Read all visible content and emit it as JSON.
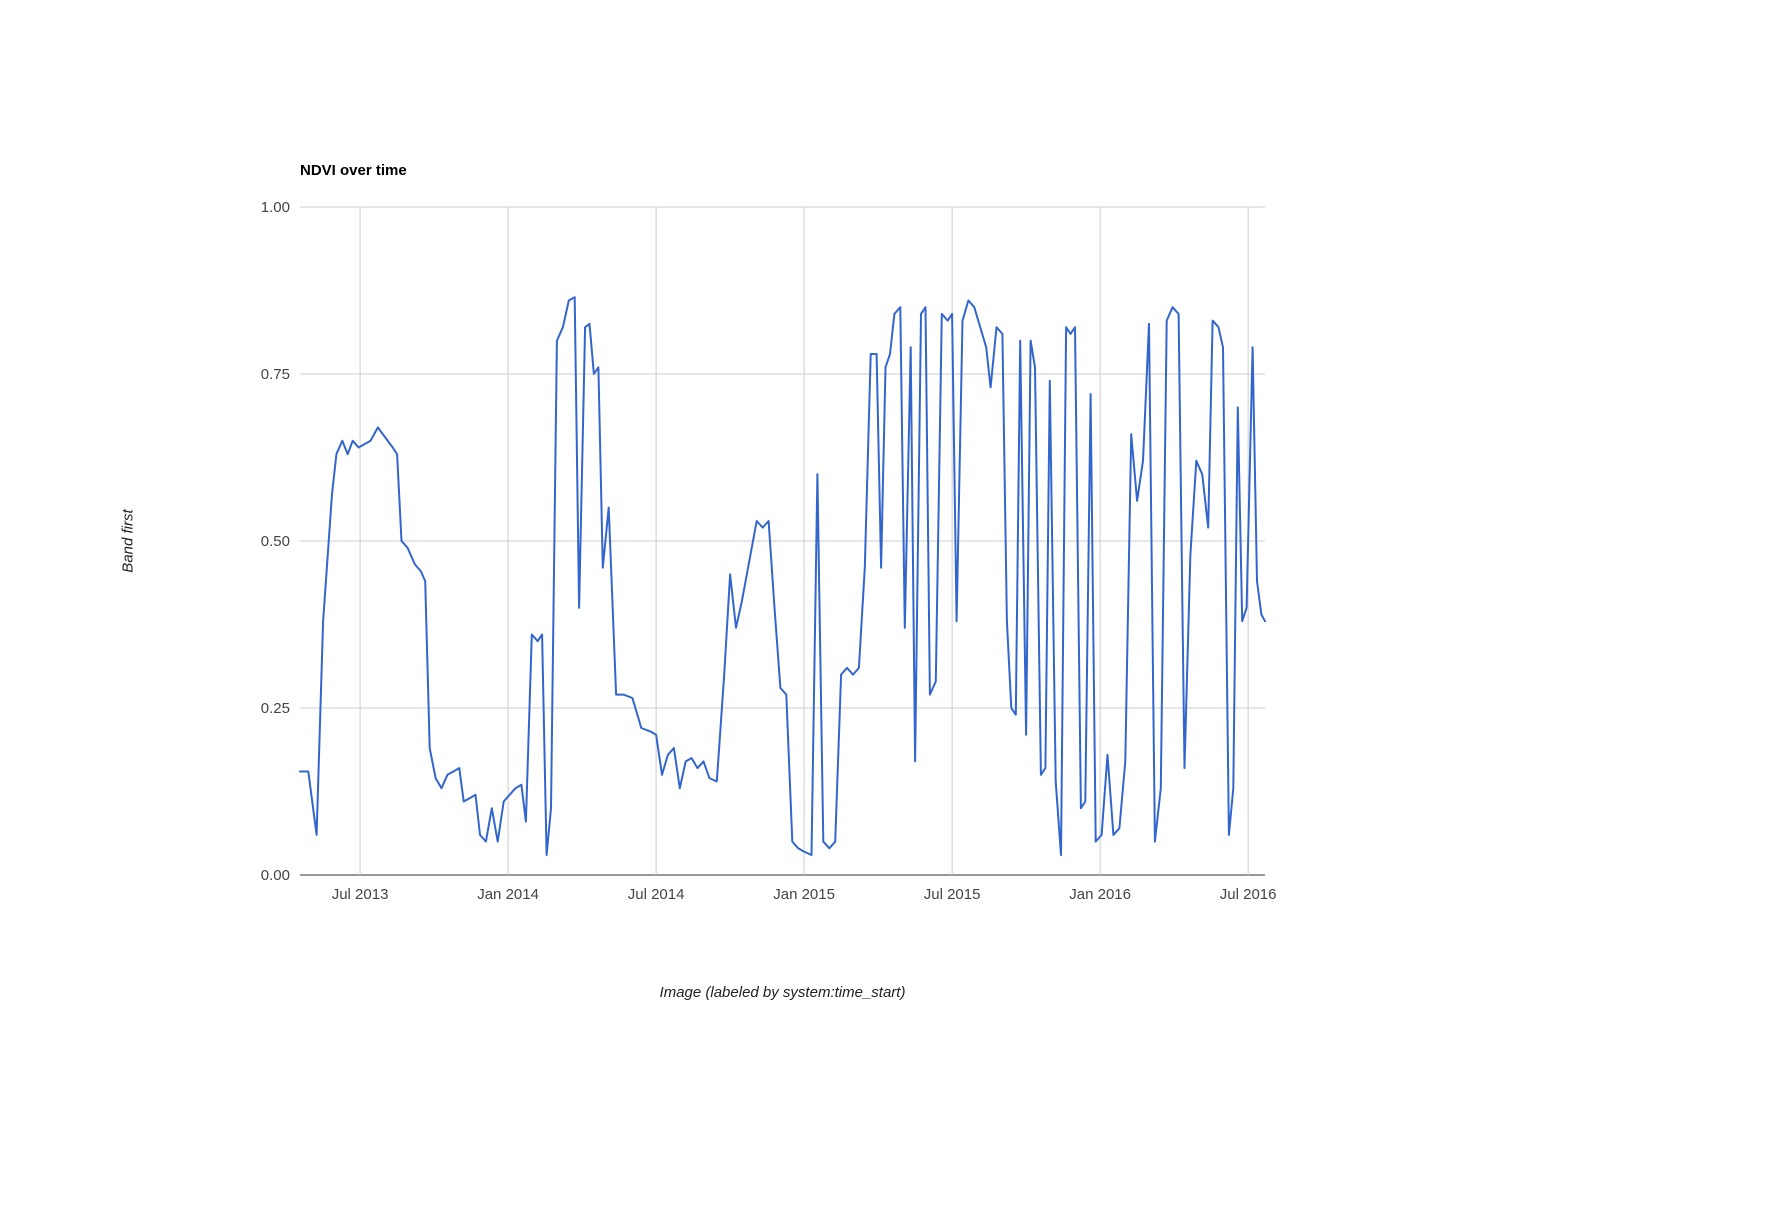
{
  "title": "NDVI over time",
  "colors": {
    "line": "#3366cc",
    "grid": "#cccccc",
    "axis": "#333333",
    "tick_text": "#444444",
    "title_text": "#000000"
  },
  "chart_data": {
    "type": "line",
    "title": "NDVI over time",
    "xlabel": "Image (labeled by system:time_start)",
    "ylabel": "Band first",
    "legend": "none",
    "grid": true,
    "x_range": [
      2013.297,
      2016.557
    ],
    "y_range": [
      0,
      1
    ],
    "x_ticks": [
      {
        "label": "Jul 2013",
        "value": 2013.5
      },
      {
        "label": "Jan 2014",
        "value": 2014.0
      },
      {
        "label": "Jul 2014",
        "value": 2014.5
      },
      {
        "label": "Jan 2015",
        "value": 2015.0
      },
      {
        "label": "Jul 2015",
        "value": 2015.5
      },
      {
        "label": "Jan 2016",
        "value": 2016.0
      },
      {
        "label": "Jul 2016",
        "value": 2016.5
      }
    ],
    "y_ticks": [
      {
        "label": "0.00",
        "value": 0.0
      },
      {
        "label": "0.25",
        "value": 0.25
      },
      {
        "label": "0.50",
        "value": 0.5
      },
      {
        "label": "0.75",
        "value": 0.75
      },
      {
        "label": "1.00",
        "value": 1.0
      }
    ],
    "series": [
      {
        "name": "first",
        "color": "#3366cc",
        "points": [
          [
            2013.297,
            0.155
          ],
          [
            2013.325,
            0.155
          ],
          [
            2013.353,
            0.06
          ],
          [
            2013.375,
            0.38
          ],
          [
            2013.405,
            0.57
          ],
          [
            2013.42,
            0.63
          ],
          [
            2013.44,
            0.65
          ],
          [
            2013.458,
            0.63
          ],
          [
            2013.475,
            0.65
          ],
          [
            2013.495,
            0.64
          ],
          [
            2013.515,
            0.645
          ],
          [
            2013.535,
            0.65
          ],
          [
            2013.56,
            0.67
          ],
          [
            2013.585,
            0.655
          ],
          [
            2013.61,
            0.64
          ],
          [
            2013.625,
            0.63
          ],
          [
            2013.64,
            0.5
          ],
          [
            2013.66,
            0.49
          ],
          [
            2013.685,
            0.465
          ],
          [
            2013.705,
            0.455
          ],
          [
            2013.72,
            0.44
          ],
          [
            2013.735,
            0.19
          ],
          [
            2013.755,
            0.145
          ],
          [
            2013.775,
            0.13
          ],
          [
            2013.795,
            0.15
          ],
          [
            2013.815,
            0.155
          ],
          [
            2013.835,
            0.16
          ],
          [
            2013.85,
            0.11
          ],
          [
            2013.87,
            0.115
          ],
          [
            2013.89,
            0.12
          ],
          [
            2013.905,
            0.06
          ],
          [
            2013.925,
            0.05
          ],
          [
            2013.945,
            0.1
          ],
          [
            2013.965,
            0.05
          ],
          [
            2013.985,
            0.11
          ],
          [
            2014.005,
            0.12
          ],
          [
            2014.025,
            0.13
          ],
          [
            2014.045,
            0.135
          ],
          [
            2014.06,
            0.08
          ],
          [
            2014.08,
            0.36
          ],
          [
            2014.1,
            0.35
          ],
          [
            2014.115,
            0.36
          ],
          [
            2014.13,
            0.03
          ],
          [
            2014.145,
            0.1
          ],
          [
            2014.165,
            0.8
          ],
          [
            2014.185,
            0.82
          ],
          [
            2014.205,
            0.86
          ],
          [
            2014.225,
            0.865
          ],
          [
            2014.24,
            0.4
          ],
          [
            2014.26,
            0.82
          ],
          [
            2014.275,
            0.825
          ],
          [
            2014.29,
            0.75
          ],
          [
            2014.305,
            0.76
          ],
          [
            2014.32,
            0.46
          ],
          [
            2014.34,
            0.55
          ],
          [
            2014.365,
            0.27
          ],
          [
            2014.39,
            0.27
          ],
          [
            2014.42,
            0.265
          ],
          [
            2014.45,
            0.22
          ],
          [
            2014.48,
            0.215
          ],
          [
            2014.5,
            0.21
          ],
          [
            2014.52,
            0.15
          ],
          [
            2014.54,
            0.18
          ],
          [
            2014.56,
            0.19
          ],
          [
            2014.58,
            0.13
          ],
          [
            2014.6,
            0.17
          ],
          [
            2014.62,
            0.175
          ],
          [
            2014.64,
            0.16
          ],
          [
            2014.66,
            0.17
          ],
          [
            2014.68,
            0.145
          ],
          [
            2014.705,
            0.14
          ],
          [
            2014.73,
            0.3
          ],
          [
            2014.75,
            0.45
          ],
          [
            2014.77,
            0.37
          ],
          [
            2014.79,
            0.41
          ],
          [
            2014.815,
            0.47
          ],
          [
            2014.84,
            0.53
          ],
          [
            2014.86,
            0.52
          ],
          [
            2014.88,
            0.53
          ],
          [
            2014.9,
            0.4
          ],
          [
            2014.92,
            0.28
          ],
          [
            2014.94,
            0.27
          ],
          [
            2014.96,
            0.05
          ],
          [
            2014.98,
            0.04
          ],
          [
            2015.0,
            0.035
          ],
          [
            2015.025,
            0.03
          ],
          [
            2015.045,
            0.6
          ],
          [
            2015.065,
            0.05
          ],
          [
            2015.085,
            0.04
          ],
          [
            2015.105,
            0.05
          ],
          [
            2015.125,
            0.3
          ],
          [
            2015.145,
            0.31
          ],
          [
            2015.165,
            0.3
          ],
          [
            2015.185,
            0.31
          ],
          [
            2015.205,
            0.46
          ],
          [
            2015.225,
            0.78
          ],
          [
            2015.245,
            0.78
          ],
          [
            2015.26,
            0.46
          ],
          [
            2015.275,
            0.76
          ],
          [
            2015.29,
            0.78
          ],
          [
            2015.305,
            0.84
          ],
          [
            2015.325,
            0.85
          ],
          [
            2015.34,
            0.37
          ],
          [
            2015.36,
            0.79
          ],
          [
            2015.375,
            0.17
          ],
          [
            2015.395,
            0.84
          ],
          [
            2015.41,
            0.85
          ],
          [
            2015.425,
            0.27
          ],
          [
            2015.445,
            0.29
          ],
          [
            2015.465,
            0.84
          ],
          [
            2015.485,
            0.83
          ],
          [
            2015.5,
            0.84
          ],
          [
            2015.515,
            0.38
          ],
          [
            2015.535,
            0.83
          ],
          [
            2015.555,
            0.86
          ],
          [
            2015.575,
            0.85
          ],
          [
            2015.595,
            0.82
          ],
          [
            2015.615,
            0.79
          ],
          [
            2015.63,
            0.73
          ],
          [
            2015.65,
            0.82
          ],
          [
            2015.67,
            0.81
          ],
          [
            2015.685,
            0.38
          ],
          [
            2015.7,
            0.25
          ],
          [
            2015.715,
            0.24
          ],
          [
            2015.73,
            0.8
          ],
          [
            2015.75,
            0.21
          ],
          [
            2015.765,
            0.8
          ],
          [
            2015.78,
            0.76
          ],
          [
            2015.8,
            0.15
          ],
          [
            2015.815,
            0.16
          ],
          [
            2015.83,
            0.74
          ],
          [
            2015.85,
            0.14
          ],
          [
            2015.868,
            0.03
          ],
          [
            2015.885,
            0.82
          ],
          [
            2015.9,
            0.81
          ],
          [
            2015.915,
            0.82
          ],
          [
            2015.935,
            0.1
          ],
          [
            2015.95,
            0.11
          ],
          [
            2015.968,
            0.72
          ],
          [
            2015.985,
            0.05
          ],
          [
            2016.005,
            0.06
          ],
          [
            2016.025,
            0.18
          ],
          [
            2016.045,
            0.06
          ],
          [
            2016.065,
            0.07
          ],
          [
            2016.085,
            0.17
          ],
          [
            2016.105,
            0.66
          ],
          [
            2016.125,
            0.56
          ],
          [
            2016.145,
            0.62
          ],
          [
            2016.165,
            0.825
          ],
          [
            2016.185,
            0.05
          ],
          [
            2016.205,
            0.13
          ],
          [
            2016.225,
            0.83
          ],
          [
            2016.245,
            0.85
          ],
          [
            2016.265,
            0.84
          ],
          [
            2016.285,
            0.16
          ],
          [
            2016.305,
            0.48
          ],
          [
            2016.325,
            0.62
          ],
          [
            2016.345,
            0.6
          ],
          [
            2016.365,
            0.52
          ],
          [
            2016.38,
            0.83
          ],
          [
            2016.4,
            0.82
          ],
          [
            2016.415,
            0.79
          ],
          [
            2016.435,
            0.06
          ],
          [
            2016.45,
            0.13
          ],
          [
            2016.465,
            0.7
          ],
          [
            2016.48,
            0.38
          ],
          [
            2016.495,
            0.4
          ],
          [
            2016.515,
            0.79
          ],
          [
            2016.53,
            0.44
          ],
          [
            2016.545,
            0.39
          ],
          [
            2016.557,
            0.38
          ]
        ]
      }
    ]
  }
}
